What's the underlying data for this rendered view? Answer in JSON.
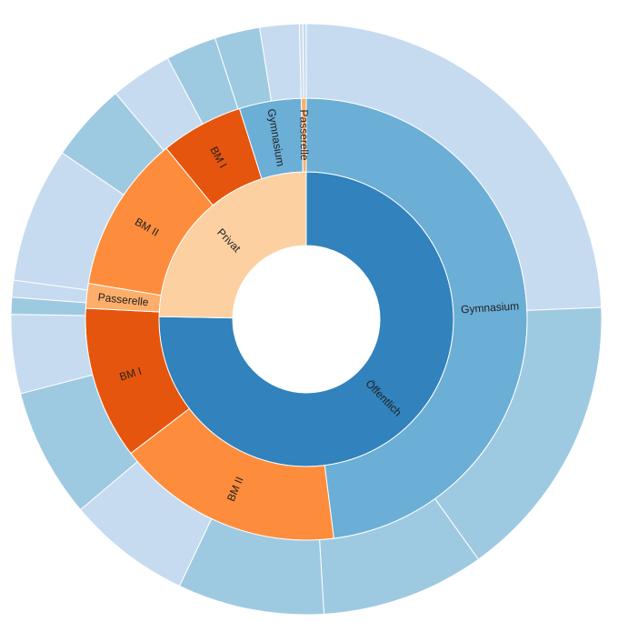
{
  "chart_data": {
    "type": "sunburst",
    "start_angle_deg": 0,
    "direction": "clockwise",
    "colors": {
      "Öffentlich": "#3182bd",
      "Gymnasium_pub": "#6baed6",
      "BM II_pub": "#fd8d3c",
      "BM I_pub": "#e6550d",
      "Passerelle_pub": "#fdae6b",
      "Privat": "#fdd0a2",
      "BM II_priv": "#fd8d3c",
      "BM I_priv": "#e6550d",
      "Gymnasium_priv": "#6baed6",
      "Passerelle_priv": "#fdae6b",
      "outer_light": "#c6dbef",
      "outer_mid": "#9ecae1"
    },
    "rings": [
      {
        "level": 1,
        "segments": [
          {
            "label": "Öffentlich",
            "color_key": "Öffentlich",
            "value": 271
          },
          {
            "label": "Privat",
            "color_key": "Privat",
            "value": 89
          }
        ]
      },
      {
        "level": 2,
        "segments": [
          {
            "label": "Gymnasium",
            "color_key": "Gymnasium_pub",
            "value": 159
          },
          {
            "label": "BM II",
            "color_key": "BM II_pub",
            "value": 55
          },
          {
            "label": "BM I",
            "color_key": "BM I_pub",
            "value": 37
          },
          {
            "label": "Passerelle",
            "color_key": "Passerelle_pub",
            "value": 6
          },
          {
            "label": "BM II",
            "color_key": "BM II_priv",
            "value": 38
          },
          {
            "label": "BM I",
            "color_key": "BM I_priv",
            "value": 20
          },
          {
            "label": "Gymnasium",
            "color_key": "Gymnasium_priv",
            "value": 15
          },
          {
            "label": "Passerelle",
            "color_key": "Passerelle_priv",
            "value": 1.2
          }
        ]
      },
      {
        "level": 3,
        "segments": [
          {
            "label": "",
            "color_key": "outer_light",
            "value": 79
          },
          {
            "label": "",
            "color_key": "outer_mid",
            "value": 51
          },
          {
            "label": "",
            "color_key": "outer_mid",
            "value": 29
          },
          {
            "label": "",
            "color_key": "outer_mid",
            "value": 26
          },
          {
            "label": "",
            "color_key": "outer_light",
            "value": 22
          },
          {
            "label": "",
            "color_key": "outer_mid",
            "value": 23
          },
          {
            "label": "",
            "color_key": "outer_light",
            "value": 14
          },
          {
            "label": "",
            "color_key": "outer_mid",
            "value": 3
          },
          {
            "label": "",
            "color_key": "outer_light",
            "value": 3
          },
          {
            "label": "",
            "color_key": "outer_light",
            "value": 24
          },
          {
            "label": "",
            "color_key": "outer_mid",
            "value": 14
          },
          {
            "label": "",
            "color_key": "outer_light",
            "value": 11
          },
          {
            "label": "",
            "color_key": "outer_mid",
            "value": 9
          },
          {
            "label": "",
            "color_key": "outer_mid",
            "value": 8
          },
          {
            "label": "",
            "color_key": "outer_light",
            "value": 7
          },
          {
            "label": "",
            "color_key": "outer_light",
            "value": 0.6
          },
          {
            "label": "",
            "color_key": "outer_light",
            "value": 0.6
          }
        ]
      }
    ]
  }
}
